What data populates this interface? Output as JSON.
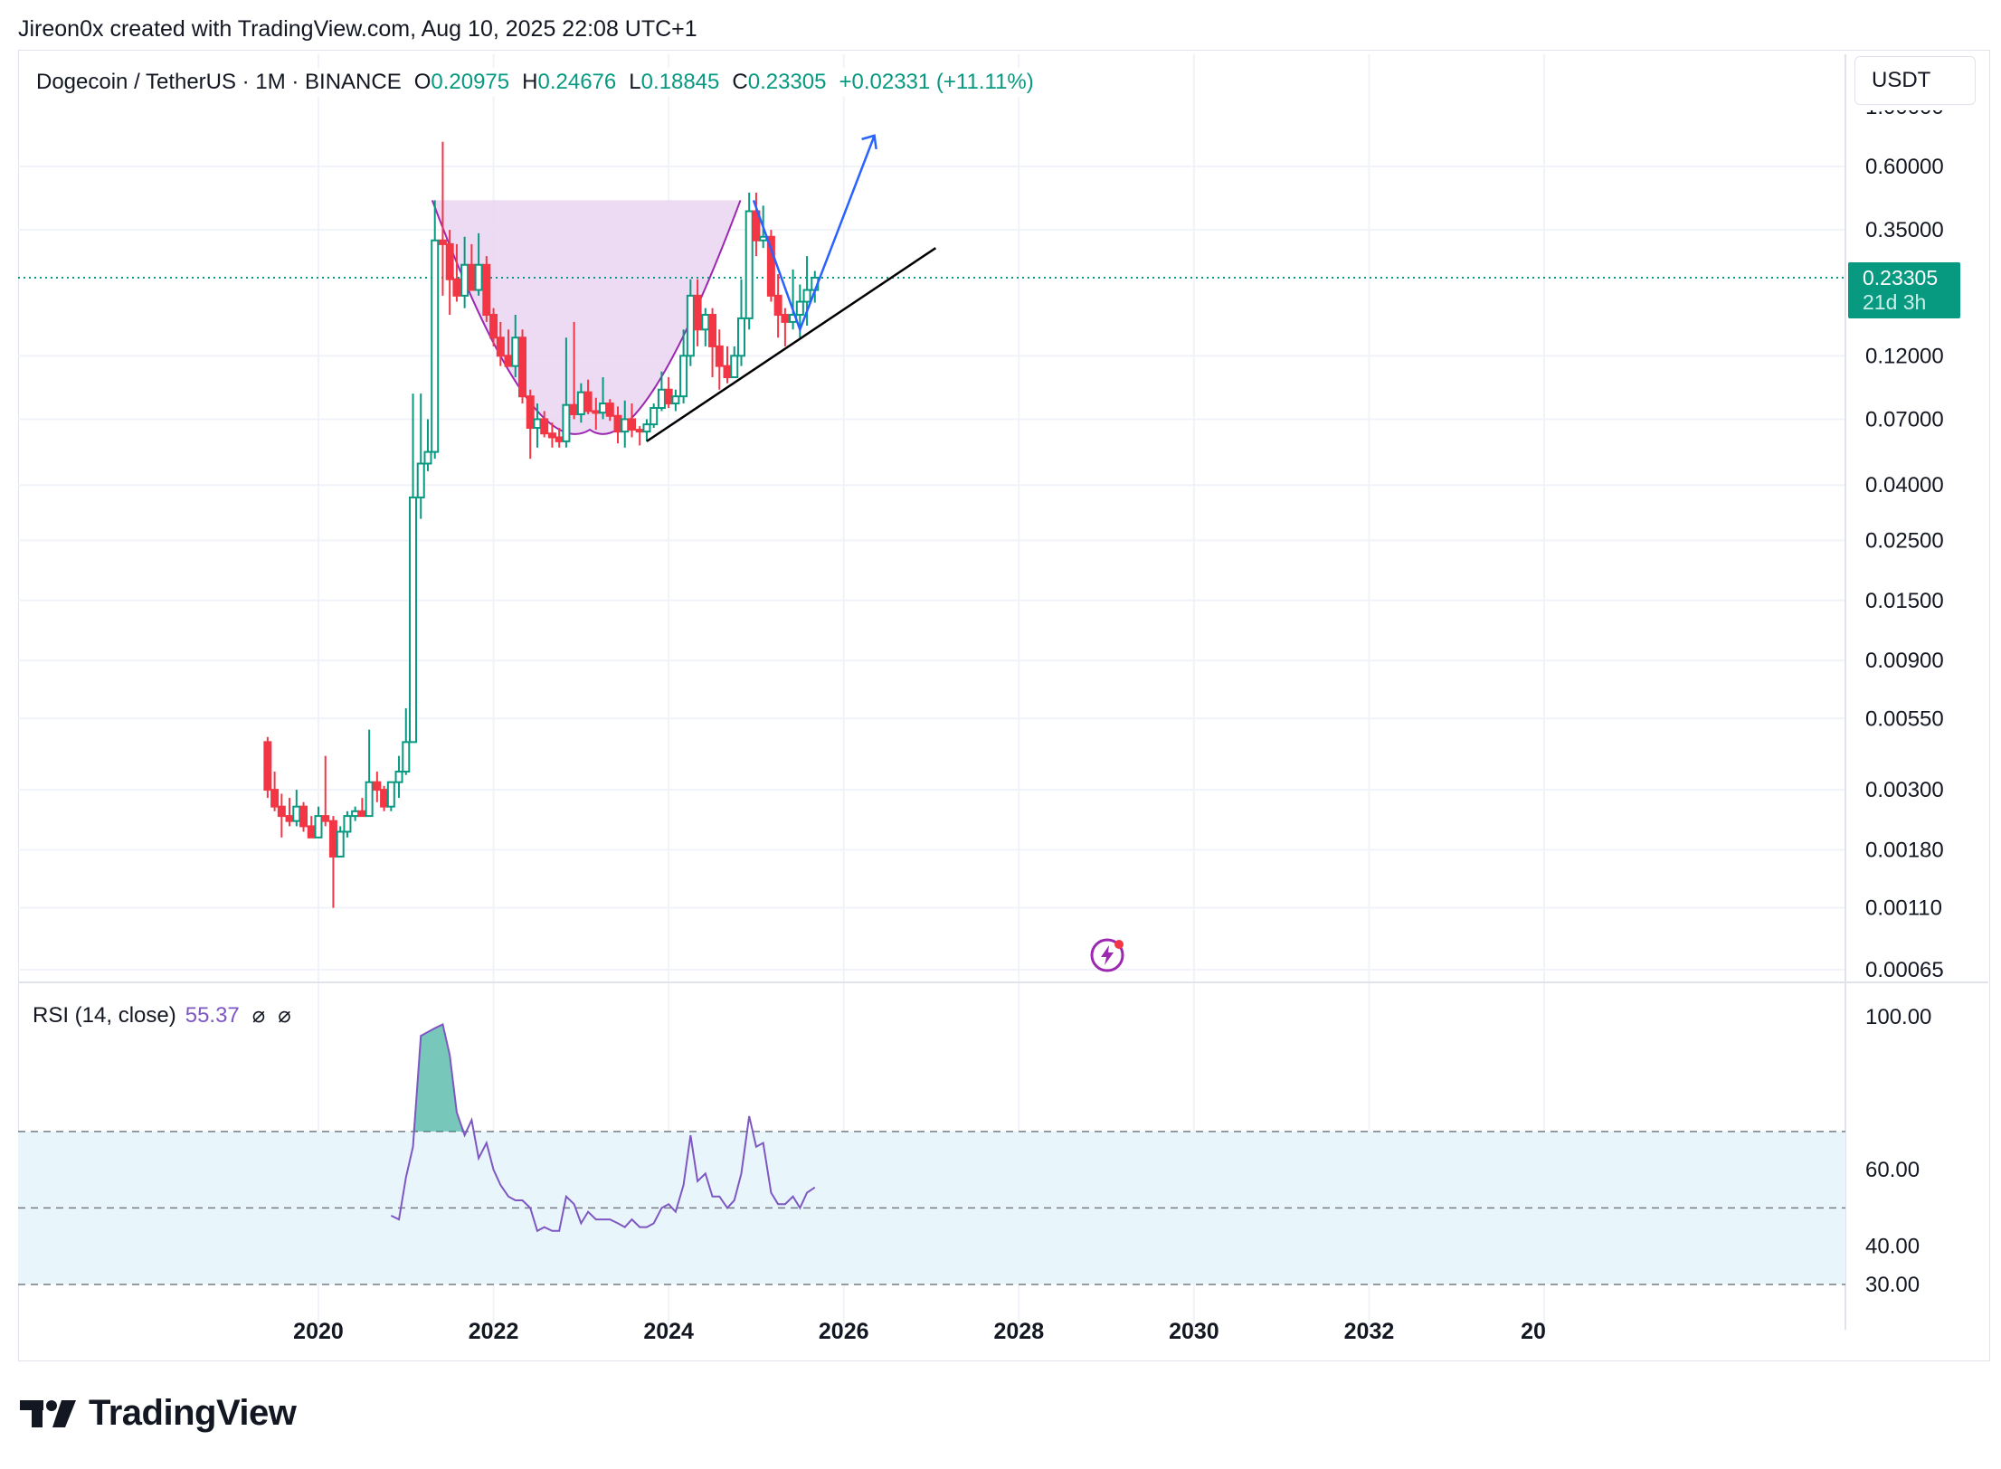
{
  "attribution": "Jireon0x created with TradingView.com, Aug 10, 2025 22:08 UTC+1",
  "legend": {
    "symbol": "Dogecoin / TetherUS · 1M · BINANCE",
    "open_label": "O",
    "open": "0.20975",
    "high_label": "H",
    "high": "0.24676",
    "low_label": "L",
    "low": "0.18845",
    "close_label": "C",
    "close": "0.23305",
    "change": "+0.02331 (+11.11%)"
  },
  "currency": "USDT",
  "price_tag": {
    "price": "0.23305",
    "countdown": "21d 3h"
  },
  "rsi_legend": {
    "label": "RSI (14, close)",
    "value": "55.37",
    "icon1": "⌀",
    "icon2": "⌀"
  },
  "brand": "TradingView",
  "colors": {
    "up": "#089981",
    "down": "#f23645",
    "cup": "#e9d5f0",
    "cup_line": "#9c27b0",
    "rsi": "#7e57c2",
    "rsi_band": "#e8f6fb",
    "arrow": "#2962ff",
    "trend": "#000000"
  },
  "chart_data": {
    "type": "candlestick",
    "scale": "log",
    "ylim": [
      0.00065,
      1.0
    ],
    "y_ticks": [
      "0.60000",
      "0.35000",
      "0.12000",
      "0.07000",
      "0.04000",
      "0.02500",
      "0.01500",
      "0.00900",
      "0.00550",
      "0.00300",
      "0.00180",
      "0.00110",
      "0.00065"
    ],
    "x_ticks": [
      "2020",
      "2022",
      "2024",
      "2026",
      "2028",
      "2030",
      "2032",
      "20"
    ],
    "xlim": [
      "2016.57",
      "2037.44"
    ],
    "current_price": 0.23305,
    "series_ohlc": [
      {
        "t": 2019.42,
        "o": 0.0045,
        "h": 0.0047,
        "l": 0.0028,
        "c": 0.003
      },
      {
        "t": 2019.5,
        "o": 0.003,
        "h": 0.0035,
        "l": 0.0025,
        "c": 0.0026
      },
      {
        "t": 2019.58,
        "o": 0.0026,
        "h": 0.0029,
        "l": 0.002,
        "c": 0.0024
      },
      {
        "t": 2019.67,
        "o": 0.0024,
        "h": 0.0028,
        "l": 0.0022,
        "c": 0.0023
      },
      {
        "t": 2019.75,
        "o": 0.0023,
        "h": 0.003,
        "l": 0.0022,
        "c": 0.0026
      },
      {
        "t": 2019.83,
        "o": 0.0026,
        "h": 0.0027,
        "l": 0.0021,
        "c": 0.0022
      },
      {
        "t": 2019.92,
        "o": 0.0022,
        "h": 0.0024,
        "l": 0.002,
        "c": 0.002
      },
      {
        "t": 2020.0,
        "o": 0.002,
        "h": 0.0026,
        "l": 0.002,
        "c": 0.0024
      },
      {
        "t": 2020.08,
        "o": 0.0024,
        "h": 0.004,
        "l": 0.0022,
        "c": 0.0023
      },
      {
        "t": 2020.17,
        "o": 0.0023,
        "h": 0.0024,
        "l": 0.0011,
        "c": 0.0017
      },
      {
        "t": 2020.25,
        "o": 0.0017,
        "h": 0.0022,
        "l": 0.0017,
        "c": 0.0021
      },
      {
        "t": 2020.33,
        "o": 0.0021,
        "h": 0.0025,
        "l": 0.002,
        "c": 0.0024
      },
      {
        "t": 2020.42,
        "o": 0.0024,
        "h": 0.0026,
        "l": 0.0023,
        "c": 0.0025
      },
      {
        "t": 2020.5,
        "o": 0.0025,
        "h": 0.0028,
        "l": 0.0024,
        "c": 0.0024
      },
      {
        "t": 2020.58,
        "o": 0.0024,
        "h": 0.005,
        "l": 0.0024,
        "c": 0.0032
      },
      {
        "t": 2020.67,
        "o": 0.0032,
        "h": 0.0035,
        "l": 0.0027,
        "c": 0.003
      },
      {
        "t": 2020.75,
        "o": 0.003,
        "h": 0.0031,
        "l": 0.0025,
        "c": 0.0026
      },
      {
        "t": 2020.83,
        "o": 0.0026,
        "h": 0.0032,
        "l": 0.0025,
        "c": 0.0032
      },
      {
        "t": 2020.92,
        "o": 0.0032,
        "h": 0.004,
        "l": 0.0028,
        "c": 0.0035
      },
      {
        "t": 2021.0,
        "o": 0.0035,
        "h": 0.006,
        "l": 0.0034,
        "c": 0.0045
      },
      {
        "t": 2021.08,
        "o": 0.0045,
        "h": 0.087,
        "l": 0.0045,
        "c": 0.036
      },
      {
        "t": 2021.17,
        "o": 0.036,
        "h": 0.087,
        "l": 0.03,
        "c": 0.048
      },
      {
        "t": 2021.25,
        "o": 0.048,
        "h": 0.07,
        "l": 0.045,
        "c": 0.053
      },
      {
        "t": 2021.33,
        "o": 0.053,
        "h": 0.45,
        "l": 0.05,
        "c": 0.32
      },
      {
        "t": 2021.42,
        "o": 0.32,
        "h": 0.74,
        "l": 0.2,
        "c": 0.31
      },
      {
        "t": 2021.5,
        "o": 0.31,
        "h": 0.35,
        "l": 0.17,
        "c": 0.23
      },
      {
        "t": 2021.58,
        "o": 0.23,
        "h": 0.31,
        "l": 0.19,
        "c": 0.2
      },
      {
        "t": 2021.67,
        "o": 0.2,
        "h": 0.33,
        "l": 0.18,
        "c": 0.26
      },
      {
        "t": 2021.75,
        "o": 0.26,
        "h": 0.31,
        "l": 0.21,
        "c": 0.21
      },
      {
        "t": 2021.83,
        "o": 0.21,
        "h": 0.34,
        "l": 0.2,
        "c": 0.26
      },
      {
        "t": 2021.92,
        "o": 0.26,
        "h": 0.28,
        "l": 0.16,
        "c": 0.17
      },
      {
        "t": 2022.0,
        "o": 0.17,
        "h": 0.18,
        "l": 0.13,
        "c": 0.14
      },
      {
        "t": 2022.08,
        "o": 0.14,
        "h": 0.16,
        "l": 0.11,
        "c": 0.12
      },
      {
        "t": 2022.17,
        "o": 0.12,
        "h": 0.15,
        "l": 0.11,
        "c": 0.11
      },
      {
        "t": 2022.25,
        "o": 0.11,
        "h": 0.17,
        "l": 0.1,
        "c": 0.14
      },
      {
        "t": 2022.33,
        "o": 0.14,
        "h": 0.15,
        "l": 0.08,
        "c": 0.085
      },
      {
        "t": 2022.42,
        "o": 0.085,
        "h": 0.09,
        "l": 0.05,
        "c": 0.065
      },
      {
        "t": 2022.5,
        "o": 0.065,
        "h": 0.08,
        "l": 0.055,
        "c": 0.07
      },
      {
        "t": 2022.58,
        "o": 0.07,
        "h": 0.075,
        "l": 0.06,
        "c": 0.062
      },
      {
        "t": 2022.67,
        "o": 0.062,
        "h": 0.068,
        "l": 0.055,
        "c": 0.06
      },
      {
        "t": 2022.75,
        "o": 0.06,
        "h": 0.065,
        "l": 0.055,
        "c": 0.058
      },
      {
        "t": 2022.83,
        "o": 0.058,
        "h": 0.14,
        "l": 0.055,
        "c": 0.079
      },
      {
        "t": 2022.92,
        "o": 0.079,
        "h": 0.16,
        "l": 0.07,
        "c": 0.073
      },
      {
        "t": 2023.0,
        "o": 0.073,
        "h": 0.095,
        "l": 0.068,
        "c": 0.088
      },
      {
        "t": 2023.08,
        "o": 0.088,
        "h": 0.098,
        "l": 0.073,
        "c": 0.075
      },
      {
        "t": 2023.17,
        "o": 0.075,
        "h": 0.084,
        "l": 0.064,
        "c": 0.074
      },
      {
        "t": 2023.25,
        "o": 0.074,
        "h": 0.1,
        "l": 0.07,
        "c": 0.08
      },
      {
        "t": 2023.33,
        "o": 0.08,
        "h": 0.083,
        "l": 0.069,
        "c": 0.072
      },
      {
        "t": 2023.42,
        "o": 0.072,
        "h": 0.078,
        "l": 0.057,
        "c": 0.063
      },
      {
        "t": 2023.5,
        "o": 0.063,
        "h": 0.082,
        "l": 0.055,
        "c": 0.07
      },
      {
        "t": 2023.58,
        "o": 0.07,
        "h": 0.08,
        "l": 0.06,
        "c": 0.064
      },
      {
        "t": 2023.67,
        "o": 0.064,
        "h": 0.066,
        "l": 0.056,
        "c": 0.063
      },
      {
        "t": 2023.75,
        "o": 0.063,
        "h": 0.07,
        "l": 0.058,
        "c": 0.067
      },
      {
        "t": 2023.83,
        "o": 0.067,
        "h": 0.08,
        "l": 0.065,
        "c": 0.077
      },
      {
        "t": 2023.92,
        "o": 0.077,
        "h": 0.105,
        "l": 0.075,
        "c": 0.09
      },
      {
        "t": 2024.0,
        "o": 0.09,
        "h": 0.1,
        "l": 0.077,
        "c": 0.08
      },
      {
        "t": 2024.08,
        "o": 0.08,
        "h": 0.09,
        "l": 0.075,
        "c": 0.085
      },
      {
        "t": 2024.17,
        "o": 0.085,
        "h": 0.15,
        "l": 0.08,
        "c": 0.12
      },
      {
        "t": 2024.25,
        "o": 0.12,
        "h": 0.23,
        "l": 0.11,
        "c": 0.2
      },
      {
        "t": 2024.33,
        "o": 0.2,
        "h": 0.23,
        "l": 0.13,
        "c": 0.15
      },
      {
        "t": 2024.42,
        "o": 0.15,
        "h": 0.18,
        "l": 0.13,
        "c": 0.17
      },
      {
        "t": 2024.5,
        "o": 0.17,
        "h": 0.18,
        "l": 0.1,
        "c": 0.13
      },
      {
        "t": 2024.58,
        "o": 0.13,
        "h": 0.15,
        "l": 0.09,
        "c": 0.11
      },
      {
        "t": 2024.67,
        "o": 0.11,
        "h": 0.13,
        "l": 0.095,
        "c": 0.1
      },
      {
        "t": 2024.75,
        "o": 0.1,
        "h": 0.13,
        "l": 0.1,
        "c": 0.12
      },
      {
        "t": 2024.83,
        "o": 0.12,
        "h": 0.23,
        "l": 0.11,
        "c": 0.165
      },
      {
        "t": 2024.92,
        "o": 0.165,
        "h": 0.48,
        "l": 0.15,
        "c": 0.41
      },
      {
        "t": 2025.0,
        "o": 0.41,
        "h": 0.48,
        "l": 0.28,
        "c": 0.32
      },
      {
        "t": 2025.08,
        "o": 0.32,
        "h": 0.43,
        "l": 0.3,
        "c": 0.33
      },
      {
        "t": 2025.17,
        "o": 0.33,
        "h": 0.35,
        "l": 0.19,
        "c": 0.2
      },
      {
        "t": 2025.25,
        "o": 0.2,
        "h": 0.24,
        "l": 0.14,
        "c": 0.17
      },
      {
        "t": 2025.33,
        "o": 0.17,
        "h": 0.18,
        "l": 0.13,
        "c": 0.16
      },
      {
        "t": 2025.42,
        "o": 0.16,
        "h": 0.25,
        "l": 0.15,
        "c": 0.17
      },
      {
        "t": 2025.5,
        "o": 0.17,
        "h": 0.22,
        "l": 0.14,
        "c": 0.19
      },
      {
        "t": 2025.58,
        "o": 0.19,
        "h": 0.28,
        "l": 0.155,
        "c": 0.21
      },
      {
        "t": 2025.67,
        "o": 0.2098,
        "h": 0.2468,
        "l": 0.1885,
        "c": 0.2331
      }
    ],
    "rsi": {
      "name": "RSI (14, close)",
      "ylim": [
        30,
        100
      ],
      "y_ticks": [
        "100.00",
        "60.00",
        "40.00",
        "30.00"
      ],
      "bands": [
        30,
        50,
        70
      ],
      "values": [
        [
          2020.83,
          48
        ],
        [
          2020.92,
          47
        ],
        [
          2021.0,
          58
        ],
        [
          2021.08,
          66
        ],
        [
          2021.17,
          95
        ],
        [
          2021.25,
          96
        ],
        [
          2021.33,
          97
        ],
        [
          2021.42,
          98
        ],
        [
          2021.5,
          90
        ],
        [
          2021.58,
          75
        ],
        [
          2021.67,
          69
        ],
        [
          2021.75,
          73
        ],
        [
          2021.83,
          63
        ],
        [
          2021.92,
          67
        ],
        [
          2022.0,
          60
        ],
        [
          2022.08,
          56
        ],
        [
          2022.17,
          53
        ],
        [
          2022.25,
          52
        ],
        [
          2022.33,
          52
        ],
        [
          2022.42,
          50
        ],
        [
          2022.5,
          44
        ],
        [
          2022.58,
          45
        ],
        [
          2022.67,
          44
        ],
        [
          2022.75,
          44
        ],
        [
          2022.83,
          53
        ],
        [
          2022.92,
          51
        ],
        [
          2023.0,
          46
        ],
        [
          2023.08,
          49
        ],
        [
          2023.17,
          47
        ],
        [
          2023.25,
          47
        ],
        [
          2023.33,
          47
        ],
        [
          2023.42,
          46
        ],
        [
          2023.5,
          45
        ],
        [
          2023.58,
          47
        ],
        [
          2023.67,
          45
        ],
        [
          2023.75,
          45
        ],
        [
          2023.83,
          46
        ],
        [
          2023.92,
          50
        ],
        [
          2024.0,
          51
        ],
        [
          2024.08,
          49
        ],
        [
          2024.17,
          56
        ],
        [
          2024.25,
          69
        ],
        [
          2024.33,
          57
        ],
        [
          2024.42,
          59
        ],
        [
          2024.5,
          53
        ],
        [
          2024.58,
          53
        ],
        [
          2024.67,
          50
        ],
        [
          2024.75,
          52
        ],
        [
          2024.83,
          59
        ],
        [
          2024.92,
          74
        ],
        [
          2025.0,
          66
        ],
        [
          2025.08,
          67
        ],
        [
          2025.17,
          54
        ],
        [
          2025.25,
          51
        ],
        [
          2025.33,
          51
        ],
        [
          2025.42,
          53
        ],
        [
          2025.5,
          50
        ],
        [
          2025.58,
          54
        ],
        [
          2025.67,
          55.37
        ]
      ]
    },
    "drawings": {
      "cup_handle_top": 0.45,
      "cup_start": [
        2021.3,
        0.45
      ],
      "cup_bottom": [
        2023.1,
        0.064
      ],
      "cup_end": [
        2024.82,
        0.45
      ],
      "handle_line": [
        [
          2024.97,
          0.45
        ],
        [
          2025.5,
          0.15
        ],
        [
          2026.35,
          0.78
        ]
      ],
      "trendline": [
        [
          2023.75,
          0.058
        ],
        [
          2027.05,
          0.3
        ]
      ]
    }
  }
}
